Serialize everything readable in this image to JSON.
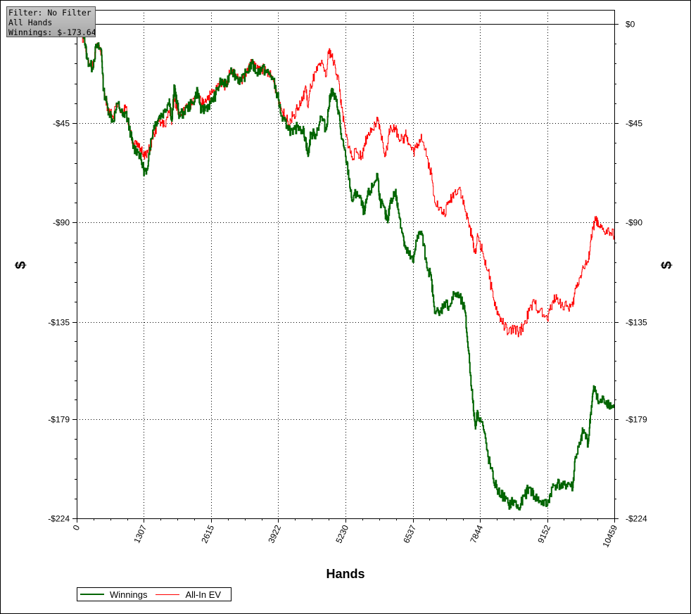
{
  "info_box": {
    "filter": "Filter: No Filter",
    "hands": "All Hands",
    "winnings": "Winnings: $-173.64"
  },
  "chart_data": {
    "type": "line",
    "xlabel": "Hands",
    "ylabel": "$",
    "xlim": [
      0,
      10459
    ],
    "ylim": [
      -224,
      0
    ],
    "x_ticks": [
      {
        "value": 0,
        "label": "0"
      },
      {
        "value": 1307,
        "label": "1307"
      },
      {
        "value": 2615,
        "label": "2615"
      },
      {
        "value": 3922,
        "label": "3922"
      },
      {
        "value": 5230,
        "label": "5230"
      },
      {
        "value": 6537,
        "label": "6537"
      },
      {
        "value": 7844,
        "label": "7844"
      },
      {
        "value": 9152,
        "label": "9152"
      },
      {
        "value": 10459,
        "label": "10459"
      }
    ],
    "y_ticks": [
      {
        "value": 0,
        "label": "$0"
      },
      {
        "value": -45,
        "label": "-$45"
      },
      {
        "value": -90,
        "label": "-$90"
      },
      {
        "value": -135,
        "label": "-$135"
      },
      {
        "value": -179,
        "label": "-$179"
      },
      {
        "value": -224,
        "label": "-$224"
      }
    ],
    "grid": true,
    "legend_position": "bottom-left",
    "series": [
      {
        "name": "Winnings",
        "color": "#006400",
        "points": [
          [
            0,
            0
          ],
          [
            150,
            -6
          ],
          [
            200,
            -16
          ],
          [
            300,
            -20
          ],
          [
            380,
            -10
          ],
          [
            480,
            -12
          ],
          [
            520,
            -30
          ],
          [
            600,
            -38
          ],
          [
            700,
            -44
          ],
          [
            800,
            -36
          ],
          [
            900,
            -42
          ],
          [
            950,
            -40
          ],
          [
            1050,
            -50
          ],
          [
            1100,
            -56
          ],
          [
            1200,
            -58
          ],
          [
            1300,
            -66
          ],
          [
            1350,
            -68
          ],
          [
            1420,
            -56
          ],
          [
            1500,
            -46
          ],
          [
            1600,
            -42
          ],
          [
            1700,
            -40
          ],
          [
            1800,
            -34
          ],
          [
            1850,
            -44
          ],
          [
            1900,
            -28
          ],
          [
            1950,
            -36
          ],
          [
            2000,
            -42
          ],
          [
            2150,
            -38
          ],
          [
            2250,
            -36
          ],
          [
            2350,
            -30
          ],
          [
            2420,
            -40
          ],
          [
            2500,
            -38
          ],
          [
            2600,
            -36
          ],
          [
            2700,
            -32
          ],
          [
            2800,
            -26
          ],
          [
            2900,
            -28
          ],
          [
            3000,
            -20
          ],
          [
            3100,
            -24
          ],
          [
            3200,
            -26
          ],
          [
            3300,
            -22
          ],
          [
            3400,
            -18
          ],
          [
            3500,
            -22
          ],
          [
            3600,
            -20
          ],
          [
            3700,
            -22
          ],
          [
            3800,
            -24
          ],
          [
            3900,
            -32
          ],
          [
            4000,
            -44
          ],
          [
            4100,
            -46
          ],
          [
            4200,
            -50
          ],
          [
            4300,
            -46
          ],
          [
            4400,
            -48
          ],
          [
            4450,
            -52
          ],
          [
            4500,
            -60
          ],
          [
            4550,
            -50
          ],
          [
            4650,
            -50
          ],
          [
            4750,
            -42
          ],
          [
            4850,
            -48
          ],
          [
            4900,
            -38
          ],
          [
            4950,
            -30
          ],
          [
            5030,
            -34
          ],
          [
            5100,
            -40
          ],
          [
            5150,
            -52
          ],
          [
            5230,
            -60
          ],
          [
            5300,
            -70
          ],
          [
            5350,
            -80
          ],
          [
            5450,
            -76
          ],
          [
            5550,
            -82
          ],
          [
            5600,
            -86
          ],
          [
            5650,
            -78
          ],
          [
            5750,
            -74
          ],
          [
            5850,
            -68
          ],
          [
            5900,
            -80
          ],
          [
            6000,
            -86
          ],
          [
            6050,
            -90
          ],
          [
            6100,
            -80
          ],
          [
            6200,
            -76
          ],
          [
            6250,
            -84
          ],
          [
            6350,
            -96
          ],
          [
            6400,
            -102
          ],
          [
            6450,
            -104
          ],
          [
            6550,
            -108
          ],
          [
            6600,
            -98
          ],
          [
            6700,
            -94
          ],
          [
            6800,
            -108
          ],
          [
            6900,
            -116
          ],
          [
            6950,
            -128
          ],
          [
            7050,
            -132
          ],
          [
            7150,
            -126
          ],
          [
            7250,
            -128
          ],
          [
            7350,
            -122
          ],
          [
            7450,
            -124
          ],
          [
            7550,
            -130
          ],
          [
            7620,
            -148
          ],
          [
            7700,
            -170
          ],
          [
            7750,
            -182
          ],
          [
            7800,
            -176
          ],
          [
            7900,
            -182
          ],
          [
            8000,
            -196
          ],
          [
            8100,
            -206
          ],
          [
            8200,
            -212
          ],
          [
            8300,
            -214
          ],
          [
            8400,
            -218
          ],
          [
            8500,
            -216
          ],
          [
            8600,
            -220
          ],
          [
            8700,
            -214
          ],
          [
            8800,
            -210
          ],
          [
            8900,
            -214
          ],
          [
            9000,
            -216
          ],
          [
            9150,
            -218
          ],
          [
            9250,
            -210
          ],
          [
            9350,
            -208
          ],
          [
            9450,
            -210
          ],
          [
            9550,
            -208
          ],
          [
            9650,
            -210
          ],
          [
            9700,
            -196
          ],
          [
            9800,
            -190
          ],
          [
            9850,
            -184
          ],
          [
            9950,
            -190
          ],
          [
            10000,
            -176
          ],
          [
            10050,
            -166
          ],
          [
            10100,
            -166
          ],
          [
            10150,
            -172
          ],
          [
            10250,
            -170
          ],
          [
            10350,
            -172
          ],
          [
            10459,
            -174
          ]
        ]
      },
      {
        "name": "All-In EV",
        "color": "#ff0000",
        "points": [
          [
            0,
            0
          ],
          [
            150,
            -8
          ],
          [
            200,
            -16
          ],
          [
            300,
            -20
          ],
          [
            380,
            -10
          ],
          [
            480,
            -12
          ],
          [
            520,
            -30
          ],
          [
            600,
            -38
          ],
          [
            700,
            -42
          ],
          [
            800,
            -36
          ],
          [
            900,
            -40
          ],
          [
            950,
            -38
          ],
          [
            1050,
            -50
          ],
          [
            1100,
            -54
          ],
          [
            1200,
            -56
          ],
          [
            1300,
            -58
          ],
          [
            1350,
            -60
          ],
          [
            1420,
            -56
          ],
          [
            1500,
            -50
          ],
          [
            1600,
            -44
          ],
          [
            1700,
            -46
          ],
          [
            1800,
            -40
          ],
          [
            1850,
            -44
          ],
          [
            1900,
            -34
          ],
          [
            1950,
            -38
          ],
          [
            2000,
            -40
          ],
          [
            2150,
            -38
          ],
          [
            2250,
            -36
          ],
          [
            2350,
            -32
          ],
          [
            2420,
            -36
          ],
          [
            2500,
            -34
          ],
          [
            2600,
            -32
          ],
          [
            2700,
            -30
          ],
          [
            2800,
            -26
          ],
          [
            2900,
            -28
          ],
          [
            3000,
            -20
          ],
          [
            3100,
            -24
          ],
          [
            3200,
            -26
          ],
          [
            3300,
            -22
          ],
          [
            3400,
            -18
          ],
          [
            3500,
            -20
          ],
          [
            3600,
            -20
          ],
          [
            3700,
            -22
          ],
          [
            3800,
            -24
          ],
          [
            3900,
            -32
          ],
          [
            4000,
            -40
          ],
          [
            4100,
            -44
          ],
          [
            4200,
            -42
          ],
          [
            4300,
            -38
          ],
          [
            4400,
            -34
          ],
          [
            4450,
            -28
          ],
          [
            4500,
            -38
          ],
          [
            4550,
            -28
          ],
          [
            4650,
            -22
          ],
          [
            4750,
            -18
          ],
          [
            4850,
            -24
          ],
          [
            4900,
            -12
          ],
          [
            4950,
            -14
          ],
          [
            5030,
            -20
          ],
          [
            5100,
            -26
          ],
          [
            5150,
            -38
          ],
          [
            5230,
            -50
          ],
          [
            5300,
            -56
          ],
          [
            5350,
            -60
          ],
          [
            5450,
            -58
          ],
          [
            5550,
            -60
          ],
          [
            5600,
            -54
          ],
          [
            5650,
            -52
          ],
          [
            5750,
            -48
          ],
          [
            5850,
            -44
          ],
          [
            5900,
            -48
          ],
          [
            6000,
            -60
          ],
          [
            6050,
            -54
          ],
          [
            6100,
            -46
          ],
          [
            6200,
            -48
          ],
          [
            6250,
            -50
          ],
          [
            6350,
            -54
          ],
          [
            6400,
            -48
          ],
          [
            6450,
            -54
          ],
          [
            6550,
            -58
          ],
          [
            6600,
            -56
          ],
          [
            6700,
            -50
          ],
          [
            6800,
            -60
          ],
          [
            6900,
            -68
          ],
          [
            6950,
            -78
          ],
          [
            7050,
            -84
          ],
          [
            7150,
            -86
          ],
          [
            7250,
            -80
          ],
          [
            7350,
            -76
          ],
          [
            7450,
            -74
          ],
          [
            7550,
            -84
          ],
          [
            7620,
            -90
          ],
          [
            7700,
            -98
          ],
          [
            7750,
            -104
          ],
          [
            7800,
            -96
          ],
          [
            7900,
            -104
          ],
          [
            8000,
            -112
          ],
          [
            8100,
            -124
          ],
          [
            8200,
            -132
          ],
          [
            8300,
            -136
          ],
          [
            8400,
            -140
          ],
          [
            8500,
            -138
          ],
          [
            8600,
            -140
          ],
          [
            8700,
            -136
          ],
          [
            8800,
            -130
          ],
          [
            8900,
            -126
          ],
          [
            9000,
            -130
          ],
          [
            9150,
            -134
          ],
          [
            9250,
            -126
          ],
          [
            9350,
            -124
          ],
          [
            9450,
            -128
          ],
          [
            9550,
            -128
          ],
          [
            9650,
            -128
          ],
          [
            9700,
            -120
          ],
          [
            9800,
            -114
          ],
          [
            9850,
            -110
          ],
          [
            9950,
            -108
          ],
          [
            10000,
            -98
          ],
          [
            10050,
            -92
          ],
          [
            10100,
            -88
          ],
          [
            10150,
            -92
          ],
          [
            10250,
            -94
          ],
          [
            10350,
            -94
          ],
          [
            10459,
            -96
          ]
        ]
      }
    ]
  }
}
